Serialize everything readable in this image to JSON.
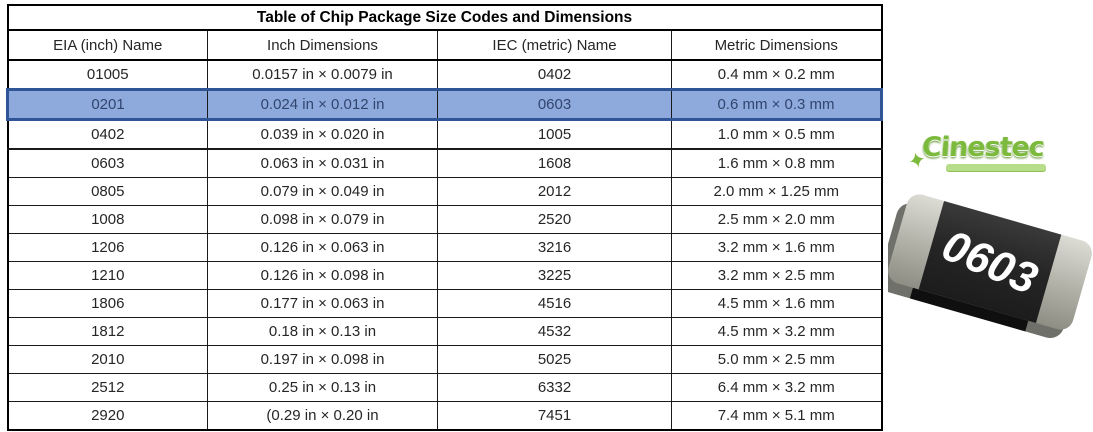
{
  "table": {
    "title": "Table of Chip Package Size Codes and Dimensions",
    "columns": [
      "EIA (inch) Name",
      "Inch Dimensions",
      "IEC (metric) Name",
      "Metric Dimensions"
    ],
    "rows": [
      {
        "eia": "01005",
        "inch": "0.0157 in × 0.0079 in",
        "iec": "0402",
        "metric": "0.4 mm × 0.2 mm",
        "highlighted": false
      },
      {
        "eia": "0201",
        "inch": "0.024 in × 0.012 in",
        "iec": "0603",
        "metric": "0.6 mm × 0.3 mm",
        "highlighted": true
      },
      {
        "eia": "0402",
        "inch": "0.039 in × 0.020 in",
        "iec": "1005",
        "metric": "1.0 mm × 0.5 mm",
        "highlighted": false
      },
      {
        "eia": "0603",
        "inch": "0.063 in × 0.031 in",
        "iec": "1608",
        "metric": "1.6 mm × 0.8 mm",
        "highlighted": false
      },
      {
        "eia": "0805",
        "inch": "0.079 in × 0.049 in",
        "iec": "2012",
        "metric": "2.0 mm × 1.25 mm",
        "highlighted": false
      },
      {
        "eia": "1008",
        "inch": "0.098 in × 0.079 in",
        "iec": "2520",
        "metric": "2.5 mm × 2.0 mm",
        "highlighted": false
      },
      {
        "eia": "1206",
        "inch": "0.126 in × 0.063 in",
        "iec": "3216",
        "metric": "3.2 mm × 1.6 mm",
        "highlighted": false
      },
      {
        "eia": "1210",
        "inch": "0.126 in × 0.098 in",
        "iec": "3225",
        "metric": "3.2 mm × 2.5 mm",
        "highlighted": false
      },
      {
        "eia": "1806",
        "inch": "0.177 in × 0.063 in",
        "iec": "4516",
        "metric": "4.5 mm × 1.6 mm",
        "highlighted": false
      },
      {
        "eia": "1812",
        "inch": "0.18 in × 0.13 in",
        "iec": "4532",
        "metric": "4.5 mm × 3.2 mm",
        "highlighted": false
      },
      {
        "eia": "2010",
        "inch": "0.197 in × 0.098 in",
        "iec": "5025",
        "metric": "5.0 mm × 2.5 mm",
        "highlighted": false
      },
      {
        "eia": "2512",
        "inch": "0.25 in × 0.13 in",
        "iec": "6332",
        "metric": "6.4 mm × 3.2 mm",
        "highlighted": false
      },
      {
        "eia": "2920",
        "inch": "(0.29 in × 0.20 in",
        "iec": "7451",
        "metric": "7.4 mm × 5.1 mm",
        "highlighted": false
      }
    ],
    "highlight_fill": "#8EA9DB",
    "highlight_border": "#2F5597",
    "highlight_text": "#31466F"
  },
  "logo": {
    "text": "Cinestec",
    "color": "#7CBA3D",
    "sparkle": "✦"
  },
  "chip": {
    "label": "0603",
    "body_color": "#2B2B2B",
    "terminal_color": "#BDBDB4"
  }
}
